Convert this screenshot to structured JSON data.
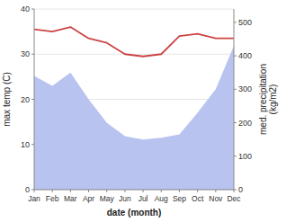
{
  "chart_data": {
    "type": "line",
    "xlabel": "date (month)",
    "ylabel": "max temp (C)",
    "y2label": "med. precipitation\n(kg/m2)",
    "categories": [
      "Jan",
      "Feb",
      "Mar",
      "Apr",
      "May",
      "Jun",
      "Jul",
      "Aug",
      "Sep",
      "Oct",
      "Nov",
      "Dec"
    ],
    "series": [
      {
        "type": "area",
        "color": "#b8c4ef",
        "axis": "y2",
        "values": [
          340,
          310,
          350,
          270,
          200,
          160,
          150,
          155,
          165,
          230,
          300,
          430
        ]
      },
      {
        "type": "line",
        "color": "#cc4444",
        "values": [
          35.5,
          35.0,
          36.0,
          33.5,
          32.5,
          30.0,
          29.5,
          30.0,
          34.0,
          34.5,
          33.5,
          33.5
        ]
      }
    ],
    "ylim": [
      0,
      40
    ],
    "yticks": [
      0,
      10,
      20,
      30,
      40
    ],
    "y2lim": [
      0,
      540
    ],
    "y2ticks": [
      0,
      100,
      200,
      300,
      400,
      500
    ],
    "grid": true
  }
}
